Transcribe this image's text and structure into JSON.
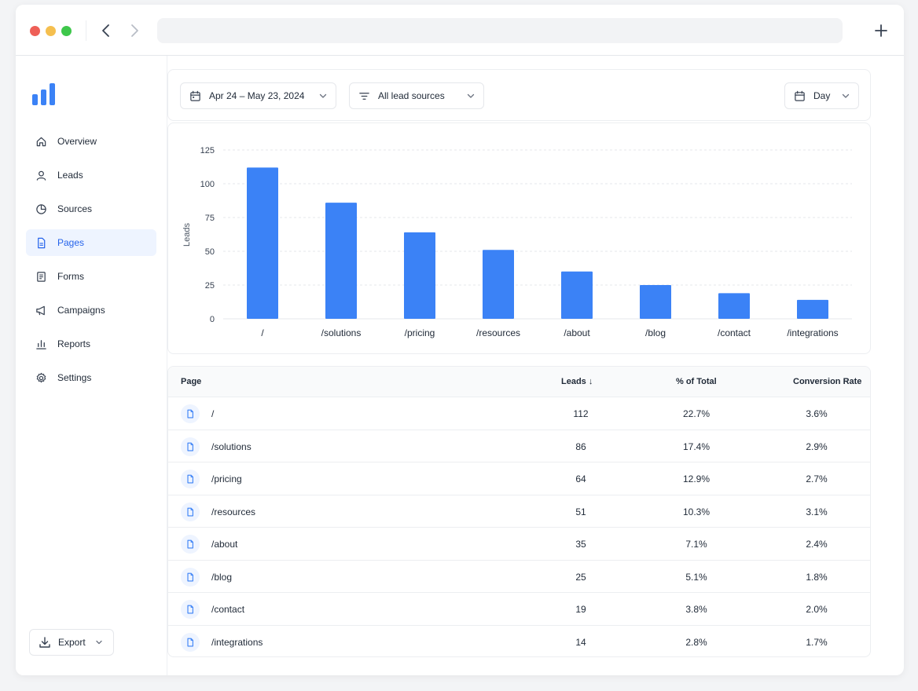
{
  "sidebar": {
    "items": [
      {
        "label": "Overview",
        "icon": "home-icon",
        "active": false
      },
      {
        "label": "Leads",
        "icon": "user-icon",
        "active": false
      },
      {
        "label": "Sources",
        "icon": "pie-chart-icon",
        "active": false
      },
      {
        "label": "Pages",
        "icon": "file-icon",
        "active": true
      },
      {
        "label": "Forms",
        "icon": "form-icon",
        "active": false
      },
      {
        "label": "Campaigns",
        "icon": "megaphone-icon",
        "active": false
      },
      {
        "label": "Reports",
        "icon": "bar-chart-icon",
        "active": false
      },
      {
        "label": "Settings",
        "icon": "gear-icon",
        "active": false
      }
    ],
    "export_label": "Export"
  },
  "filters": {
    "date_range": "Apr 24 – May 23, 2024",
    "source": "All lead sources",
    "granularity": "Day"
  },
  "colors": {
    "accent": "#3b82f6",
    "active_bg": "#eef4ff"
  },
  "chart_data": {
    "type": "bar",
    "categories": [
      "/",
      "/solutions",
      "/pricing",
      "/resources",
      "/about",
      "/blog",
      "/contact",
      "/integrations"
    ],
    "values": [
      112,
      86,
      64,
      51,
      35,
      25,
      19,
      14
    ],
    "ylabel": "Leads",
    "xlabel": "",
    "ylim": [
      0,
      125
    ],
    "yticks": [
      0,
      25,
      50,
      75,
      100,
      125
    ],
    "grid": true
  },
  "table": {
    "headers": {
      "page": "Page",
      "leads": "Leads ↓",
      "pct": "% of Total",
      "conv": "Conversion Rate"
    },
    "rows": [
      {
        "page": "/",
        "leads": "112",
        "pct": "22.7%",
        "conv": "3.6%"
      },
      {
        "page": "/solutions",
        "leads": "86",
        "pct": "17.4%",
        "conv": "2.9%"
      },
      {
        "page": "/pricing",
        "leads": "64",
        "pct": "12.9%",
        "conv": "2.7%"
      },
      {
        "page": "/resources",
        "leads": "51",
        "pct": "10.3%",
        "conv": "3.1%"
      },
      {
        "page": "/about",
        "leads": "35",
        "pct": "7.1%",
        "conv": "2.4%"
      },
      {
        "page": "/blog",
        "leads": "25",
        "pct": "5.1%",
        "conv": "1.8%"
      },
      {
        "page": "/contact",
        "leads": "19",
        "pct": "3.8%",
        "conv": "2.0%"
      },
      {
        "page": "/integrations",
        "leads": "14",
        "pct": "2.8%",
        "conv": "1.7%"
      }
    ]
  }
}
